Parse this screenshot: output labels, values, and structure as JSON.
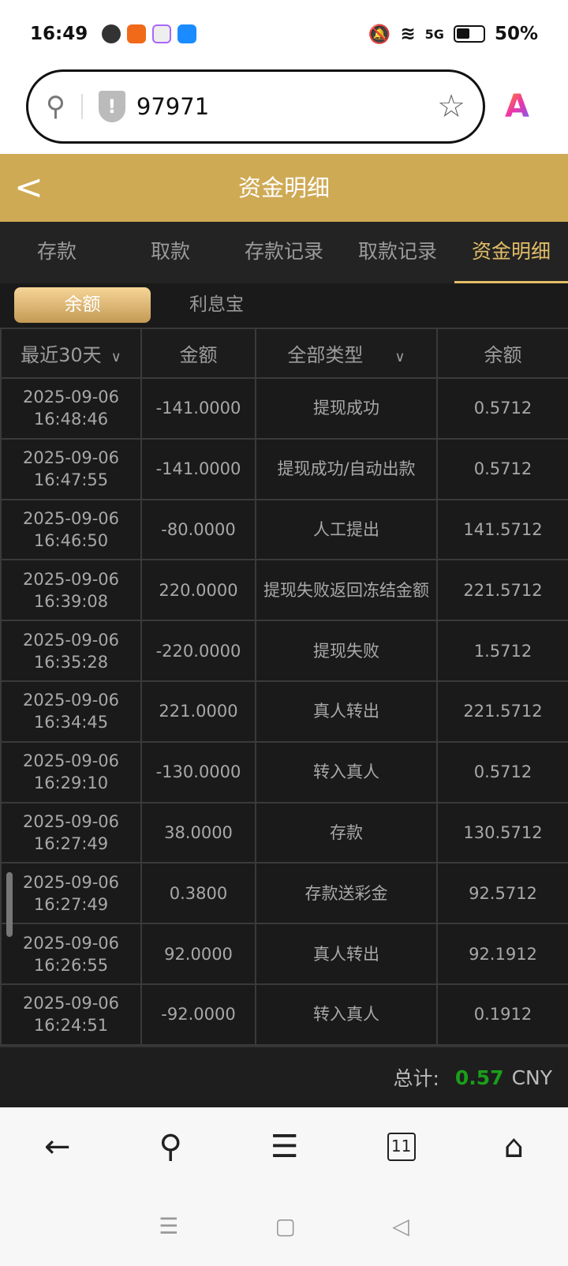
{
  "status": {
    "time": "16:49",
    "battery": "50%",
    "network": "5G"
  },
  "browser": {
    "url": "97971"
  },
  "header": {
    "title": "资金明细"
  },
  "tabs": [
    {
      "label": "存款"
    },
    {
      "label": "取款"
    },
    {
      "label": "存款记录"
    },
    {
      "label": "取款记录"
    },
    {
      "label": "资金明细",
      "active": true
    }
  ],
  "subtabs": [
    {
      "label": "余额",
      "active": true
    },
    {
      "label": "利息宝"
    }
  ],
  "table": {
    "headers": [
      "最近30天",
      "金额",
      "全部类型",
      "余额"
    ],
    "rows": [
      {
        "date": "2025-09-06",
        "time": "16:48:46",
        "amount": "-141.0000",
        "type": "提现成功",
        "balance": "0.5712"
      },
      {
        "date": "2025-09-06",
        "time": "16:47:55",
        "amount": "-141.0000",
        "type": "提现成功/自动出款",
        "balance": "0.5712"
      },
      {
        "date": "2025-09-06",
        "time": "16:46:50",
        "amount": "-80.0000",
        "type": "人工提出",
        "balance": "141.5712"
      },
      {
        "date": "2025-09-06",
        "time": "16:39:08",
        "amount": "220.0000",
        "type": "提现失败返回冻结金额",
        "balance": "221.5712"
      },
      {
        "date": "2025-09-06",
        "time": "16:35:28",
        "amount": "-220.0000",
        "type": "提现失败",
        "balance": "1.5712"
      },
      {
        "date": "2025-09-06",
        "time": "16:34:45",
        "amount": "221.0000",
        "type": "真人转出",
        "balance": "221.5712"
      },
      {
        "date": "2025-09-06",
        "time": "16:29:10",
        "amount": "-130.0000",
        "type": "转入真人",
        "balance": "0.5712"
      },
      {
        "date": "2025-09-06",
        "time": "16:27:49",
        "amount": "38.0000",
        "type": "存款",
        "balance": "130.5712"
      },
      {
        "date": "2025-09-06",
        "time": "16:27:49",
        "amount": "0.3800",
        "type": "存款送彩金",
        "balance": "92.5712"
      },
      {
        "date": "2025-09-06",
        "time": "16:26:55",
        "amount": "92.0000",
        "type": "真人转出",
        "balance": "92.1912"
      },
      {
        "date": "2025-09-06",
        "time": "16:24:51",
        "amount": "-92.0000",
        "type": "转入真人",
        "balance": "0.1912"
      }
    ]
  },
  "footer": {
    "label": "总计:",
    "total": "0.57",
    "currency": "CNY"
  },
  "bottom_nav": {
    "tab_count": "11"
  },
  "colors": {
    "gold": "#cfaa55",
    "accent": "#e2bd67",
    "total_green": "#1a9e1a"
  }
}
